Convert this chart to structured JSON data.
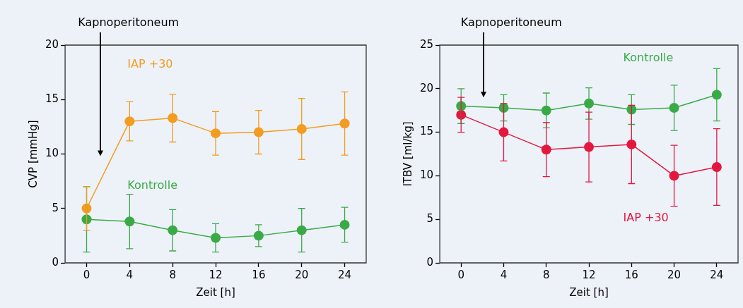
{
  "chart_data": [
    {
      "type": "line",
      "xlabel": "Zeit [h]",
      "ylabel": "CVP [mmHg]",
      "x": [
        0,
        4,
        8,
        12,
        16,
        20,
        24
      ],
      "xlim": [
        -2,
        26
      ],
      "xticks": [
        0,
        4,
        8,
        12,
        16,
        20,
        24
      ],
      "ylim": [
        0,
        20
      ],
      "yticks": [
        0,
        5,
        10,
        15,
        20
      ],
      "grid": false,
      "legend": false,
      "marker": "circle",
      "line_style": "solid",
      "annotations": [
        "Kapnoperitoneum"
      ],
      "series": [
        {
          "name": "Kontrolle",
          "color": "#3aaa47",
          "values": [
            4,
            3.8,
            3,
            2.3,
            2.5,
            3,
            3.5
          ],
          "errors": [
            [
              1,
              7
            ],
            [
              1.3,
              6.3
            ],
            [
              1.1,
              4.9
            ],
            [
              1,
              3.6
            ],
            [
              1.5,
              3.5
            ],
            [
              1,
              5
            ],
            [
              1.9,
              5.1
            ]
          ]
        },
        {
          "name": "IAP +30",
          "color": "#f39c1f",
          "values": [
            5,
            13,
            13.3,
            11.9,
            12,
            12.3,
            12.8
          ],
          "errors": [
            [
              3,
              7
            ],
            [
              11.2,
              14.8
            ],
            [
              11.1,
              15.5
            ],
            [
              9.9,
              13.9
            ],
            [
              10,
              14
            ],
            [
              9.5,
              15.1
            ],
            [
              9.9,
              15.7
            ]
          ]
        }
      ]
    },
    {
      "type": "line",
      "xlabel": "Zeit [h]",
      "ylabel": "ITBV [ml/kg]",
      "x": [
        0,
        4,
        8,
        12,
        16,
        20,
        24
      ],
      "xlim": [
        -2,
        26
      ],
      "xticks": [
        0,
        4,
        8,
        12,
        16,
        20,
        24
      ],
      "ylim": [
        0,
        25
      ],
      "yticks": [
        0,
        5,
        10,
        15,
        20,
        25
      ],
      "grid": false,
      "legend": false,
      "marker": "circle",
      "line_style": "solid",
      "annotations": [
        "Kapnoperitoneum"
      ],
      "series": [
        {
          "name": "Kontrolle",
          "color": "#3aaa47",
          "values": [
            18,
            17.8,
            17.5,
            18.3,
            17.6,
            17.8,
            19.3
          ],
          "errors": [
            [
              16,
              20
            ],
            [
              16.3,
              19.3
            ],
            [
              15.5,
              19.5
            ],
            [
              16.5,
              20.1
            ],
            [
              15.9,
              19.3
            ],
            [
              15.2,
              20.4
            ],
            [
              16.3,
              22.3
            ]
          ]
        },
        {
          "name": "IAP +30",
          "color": "#e4173f",
          "values": [
            17,
            15,
            13,
            13.3,
            13.6,
            10,
            11
          ],
          "errors": [
            [
              15,
              19
            ],
            [
              11.7,
              18.3
            ],
            [
              9.9,
              16.1
            ],
            [
              9.3,
              17.3
            ],
            [
              9.1,
              18.1
            ],
            [
              6.5,
              13.5
            ],
            [
              6.6,
              15.4
            ]
          ]
        }
      ]
    }
  ]
}
